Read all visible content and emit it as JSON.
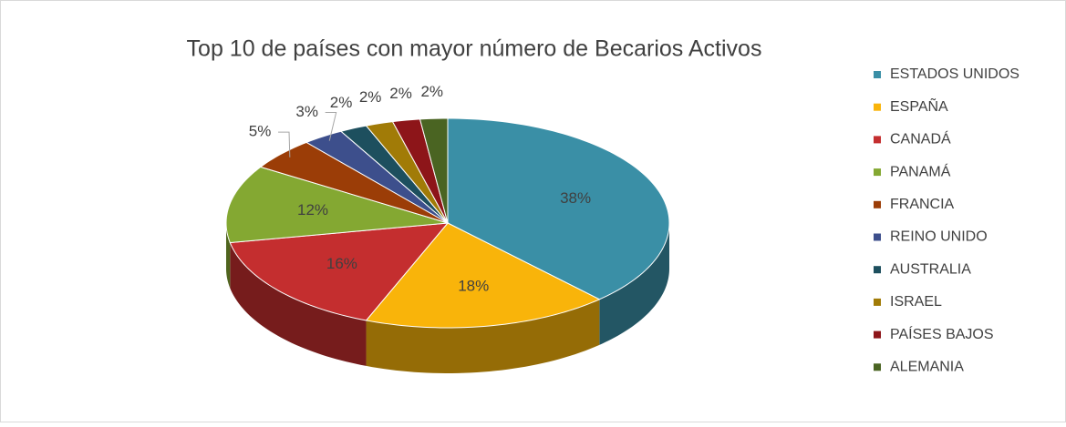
{
  "chart_data": {
    "type": "pie3d",
    "title": "Top 10 de países con mayor número de Becarios Activos",
    "categories": [
      "ESTADOS UNIDOS",
      "ESPAÑA",
      "CANADÁ",
      "PANAMÁ",
      "FRANCIA",
      "REINO UNIDO",
      "AUSTRALIA",
      "ISRAEL",
      "PAÍSES BAJOS",
      "ALEMANIA"
    ],
    "values": [
      38,
      18,
      16,
      12,
      5,
      3,
      2,
      2,
      2,
      2
    ],
    "value_labels": [
      "38%",
      "18%",
      "16%",
      "12%",
      "5%",
      "3%",
      "2%",
      "2%",
      "2%",
      "2%"
    ],
    "colors": [
      "#3a8fa6",
      "#f9b40a",
      "#c42e2f",
      "#84a832",
      "#9b3d07",
      "#3d4f8c",
      "#1d4f5e",
      "#a17b07",
      "#8d1519",
      "#4a6422"
    ],
    "legend": "right"
  }
}
